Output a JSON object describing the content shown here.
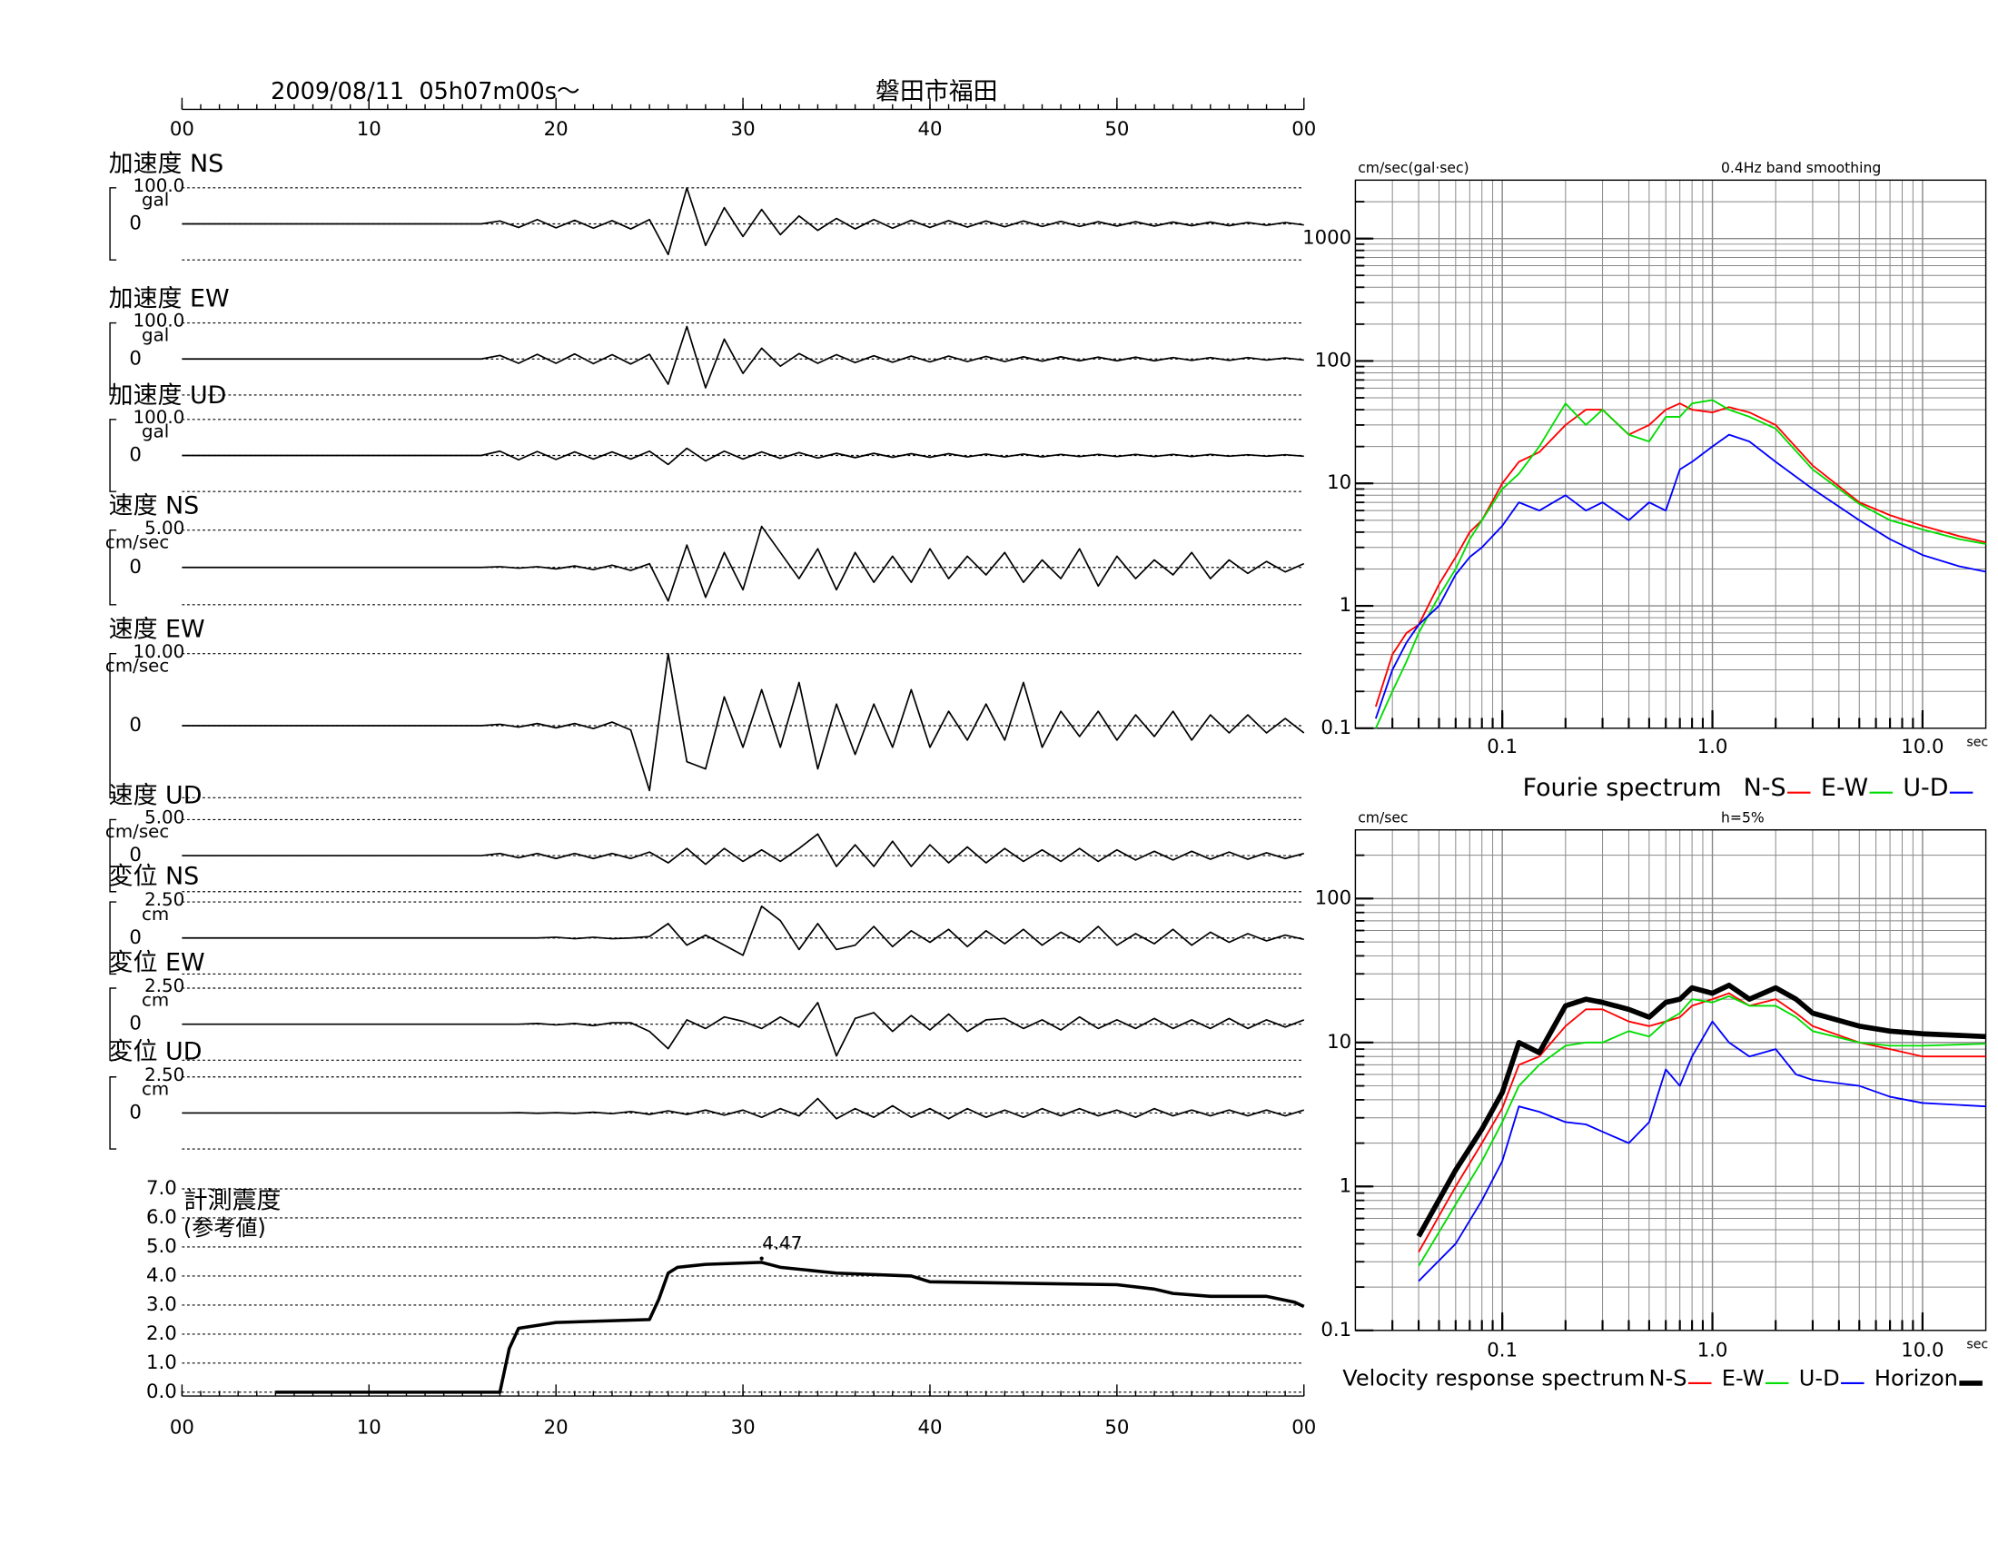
{
  "chart_data": [
    {
      "type": "waveform",
      "title": "2009/08/11  05h07m00s〜",
      "subtitle": "磐田市福田",
      "xlim": [
        0,
        60
      ],
      "xticks": [
        {
          "value": 0,
          "label": "00"
        },
        10,
        20,
        30,
        40,
        50,
        {
          "value": 60,
          "label": "00"
        }
      ],
      "color": "#000000",
      "x": [
        0,
        16,
        17,
        18,
        19,
        20,
        21,
        22,
        23,
        24,
        25,
        26,
        27,
        28,
        29,
        30,
        31,
        32,
        33,
        34,
        35,
        36,
        37,
        38,
        39,
        40,
        41,
        42,
        43,
        44,
        45,
        46,
        47,
        48,
        49,
        50,
        51,
        52,
        53,
        54,
        55,
        56,
        57,
        58,
        59,
        60
      ],
      "series": [
        {
          "name": "加速度 NS",
          "unit": "gal",
          "ylim": [
            -100,
            100
          ],
          "yticks": [
            {
              "value": 100,
              "label": "100.0"
            },
            0
          ],
          "values": [
            0,
            0,
            8,
            -10,
            12,
            -11,
            10,
            -12,
            9,
            -14,
            12,
            -85,
            100,
            -60,
            45,
            -35,
            40,
            -30,
            22,
            -18,
            15,
            -14,
            12,
            -12,
            10,
            -10,
            9,
            -9,
            8,
            -8,
            8,
            -7,
            7,
            -7,
            6,
            -6,
            6,
            -6,
            5,
            -5,
            5,
            -5,
            4,
            -4,
            4,
            -3
          ]
        },
        {
          "name": "加速度 EW",
          "unit": "gal",
          "ylim": [
            -100,
            100
          ],
          "yticks": [
            {
              "value": 100,
              "label": "100.0"
            },
            0
          ],
          "values": [
            0,
            0,
            10,
            -12,
            13,
            -12,
            14,
            -13,
            12,
            -14,
            13,
            -70,
            90,
            -80,
            55,
            -40,
            30,
            -20,
            15,
            -12,
            12,
            -10,
            9,
            -9,
            8,
            -8,
            8,
            -7,
            7,
            -7,
            6,
            -6,
            6,
            -5,
            5,
            -5,
            5,
            -5,
            4,
            -4,
            4,
            -4,
            4,
            -3,
            3,
            -3
          ]
        },
        {
          "name": "加速度 UD",
          "unit": "gal",
          "ylim": [
            -100,
            100
          ],
          "yticks": [
            {
              "value": 100,
              "label": "100.0"
            },
            0
          ],
          "values": [
            0,
            0,
            12,
            -12,
            11,
            -11,
            10,
            -10,
            10,
            -10,
            12,
            -25,
            20,
            -15,
            12,
            -10,
            10,
            -8,
            8,
            -7,
            6,
            -6,
            6,
            -5,
            5,
            -5,
            5,
            -4,
            4,
            -4,
            4,
            -4,
            3,
            -3,
            3,
            -3,
            3,
            -3,
            3,
            -3,
            3,
            -2,
            2,
            -2,
            2,
            -2
          ]
        },
        {
          "name": "速度 NS",
          "unit": "cm/sec",
          "ylim": [
            -5,
            5
          ],
          "yticks": [
            {
              "value": 5,
              "label": "5.00"
            },
            0
          ],
          "values": [
            0,
            0,
            0.1,
            -0.1,
            0.1,
            -0.2,
            0.2,
            -0.3,
            0.3,
            -0.4,
            0.5,
            -4.5,
            3,
            -4,
            2,
            -3,
            5.5,
            2,
            -1.5,
            2.5,
            -3,
            2,
            -2,
            1.5,
            -2,
            2.5,
            -1.5,
            1.5,
            -1,
            2,
            -2,
            1,
            -1.5,
            2.5,
            -2.5,
            1.5,
            -1.5,
            1,
            -1,
            2,
            -1.5,
            1,
            -0.8,
            0.8,
            -0.6,
            0.5
          ]
        },
        {
          "name": "速度 EW",
          "unit": "cm/sec",
          "ylim": [
            -10,
            10
          ],
          "yticks": [
            {
              "value": 10,
              "label": "10.00"
            },
            0
          ],
          "values": [
            0,
            0,
            0.2,
            -0.2,
            0.3,
            -0.3,
            0.3,
            -0.4,
            0.5,
            -0.6,
            -9,
            10,
            -5,
            -6,
            4,
            -3,
            5,
            -3,
            6,
            -6,
            3,
            -4,
            3,
            -3,
            5,
            -3,
            2,
            -2,
            3,
            -2,
            6,
            -3,
            2,
            -1.5,
            2,
            -2,
            1.5,
            -1.5,
            2,
            -2,
            1.5,
            -1,
            1.5,
            -1,
            1,
            -1
          ]
        },
        {
          "name": "速度 UD",
          "unit": "cm/sec",
          "ylim": [
            -5,
            5
          ],
          "yticks": [
            {
              "value": 5,
              "label": "5.00"
            },
            0
          ],
          "values": [
            0,
            0,
            0.3,
            -0.3,
            0.3,
            -0.4,
            0.3,
            -0.4,
            0.3,
            -0.4,
            0.5,
            -1,
            1,
            -1.2,
            1,
            -0.8,
            0.8,
            -0.8,
            1,
            3,
            -1.5,
            1.5,
            -1.5,
            2,
            -1.5,
            1.5,
            -1,
            1.2,
            -1,
            1,
            -0.8,
            0.8,
            -0.8,
            1,
            -0.8,
            0.8,
            -0.6,
            0.6,
            -0.6,
            0.6,
            -0.5,
            0.5,
            -0.5,
            0.4,
            -0.4,
            0.3
          ]
        },
        {
          "name": "変位 NS",
          "unit": "cm",
          "ylim": [
            -2.5,
            2.5
          ],
          "yticks": [
            {
              "value": 2.5,
              "label": "2.50"
            },
            0
          ],
          "values": [
            0,
            0,
            0,
            0,
            0,
            0.05,
            -0.05,
            0.05,
            -0.05,
            0,
            0.1,
            1,
            -0.5,
            0.2,
            -0.5,
            -1.2,
            2.2,
            1.2,
            -0.8,
            1,
            -0.8,
            -0.5,
            0.8,
            -0.6,
            0.5,
            -0.3,
            0.6,
            -0.6,
            0.5,
            -0.4,
            0.6,
            -0.5,
            0.4,
            -0.3,
            0.8,
            -0.5,
            0.3,
            -0.4,
            0.6,
            -0.5,
            0.4,
            -0.3,
            0.3,
            -0.2,
            0.2,
            -0.1
          ]
        },
        {
          "name": "変位 EW",
          "unit": "cm",
          "ylim": [
            -2.5,
            2.5
          ],
          "yticks": [
            {
              "value": 2.5,
              "label": "2.50"
            },
            0
          ],
          "values": [
            0,
            0,
            0,
            0,
            0.05,
            -0.05,
            0.05,
            -0.1,
            0.1,
            0.1,
            -0.5,
            -1.7,
            0.3,
            -0.3,
            0.5,
            0.2,
            -0.3,
            0.5,
            -0.2,
            1.5,
            -2.2,
            0.4,
            0.8,
            -0.5,
            0.6,
            -0.4,
            0.7,
            -0.5,
            0.3,
            0.4,
            -0.3,
            0.3,
            -0.4,
            0.5,
            -0.3,
            0.3,
            -0.3,
            0.4,
            -0.3,
            0.3,
            -0.3,
            0.4,
            -0.3,
            0.3,
            -0.2,
            0.3
          ]
        },
        {
          "name": "変位 UD",
          "unit": "cm",
          "ylim": [
            -2.5,
            2.5
          ],
          "yticks": [
            {
              "value": 2.5,
              "label": "2.50"
            },
            0
          ],
          "values": [
            0,
            0,
            0,
            0.02,
            -0.02,
            0.02,
            -0.03,
            0.05,
            -0.05,
            0.1,
            -0.1,
            0.15,
            -0.1,
            0.2,
            -0.15,
            0.2,
            -0.3,
            0.3,
            -0.2,
            1,
            -0.4,
            0.3,
            -0.3,
            0.5,
            -0.3,
            0.3,
            -0.4,
            0.3,
            -0.3,
            0.2,
            -0.3,
            0.3,
            -0.2,
            0.3,
            -0.2,
            0.2,
            -0.3,
            0.3,
            -0.2,
            0.2,
            -0.2,
            0.2,
            -0.2,
            0.2,
            -0.2,
            0.2
          ]
        }
      ]
    },
    {
      "type": "intensity",
      "ylabel": "計測震度",
      "ylabel_note": "(参考値)",
      "color": "#000000",
      "xlim": [
        0,
        60
      ],
      "xticks": [
        {
          "value": 0,
          "label": "00"
        },
        10,
        20,
        30,
        40,
        50,
        {
          "value": 60,
          "label": "00"
        }
      ],
      "ylim": [
        0,
        7
      ],
      "yticks": [
        {
          "value": 0,
          "label": "0.0"
        },
        {
          "value": 1,
          "label": "1.0"
        },
        {
          "value": 2,
          "label": "2.0"
        },
        {
          "value": 3,
          "label": "3.0"
        },
        {
          "value": 4,
          "label": "4.0"
        },
        {
          "value": 5,
          "label": "5.0"
        },
        {
          "value": 6,
          "label": "6.0"
        },
        {
          "value": 7,
          "label": "7.0"
        }
      ],
      "grid": true,
      "x": [
        5,
        17,
        17.5,
        18,
        20,
        25,
        25.5,
        26,
        26.5,
        28,
        31,
        32,
        35,
        39,
        40,
        45,
        50,
        52,
        53,
        55,
        58,
        59.5,
        60
      ],
      "values": [
        0,
        0,
        1.5,
        2.2,
        2.4,
        2.5,
        3.2,
        4.1,
        4.3,
        4.4,
        4.47,
        4.3,
        4.1,
        4.0,
        3.8,
        3.75,
        3.7,
        3.55,
        3.4,
        3.3,
        3.3,
        3.1,
        2.95
      ],
      "annotations": [
        {
          "x": 31,
          "y": 4.47,
          "text": "4.47"
        }
      ]
    },
    {
      "type": "spectrum",
      "title": "Fourie spectrum",
      "ylabel": "cm/sec(gal·sec)",
      "note": "0.4Hz band smoothing",
      "xlabel": "sec",
      "xscale": "log",
      "yscale": "log",
      "grid": true,
      "xlim": [
        0.02,
        20
      ],
      "ylim": [
        0.1,
        3000
      ],
      "xticks": [
        0.1,
        {
          "value": 1,
          "label": "1.0"
        },
        {
          "value": 10,
          "label": "10.0"
        }
      ],
      "yticks": [
        0.1,
        1,
        10,
        100,
        1000
      ],
      "x": [
        0.025,
        0.03,
        0.035,
        0.04,
        0.05,
        0.06,
        0.07,
        0.08,
        0.1,
        0.12,
        0.15,
        0.2,
        0.25,
        0.3,
        0.4,
        0.5,
        0.6,
        0.7,
        0.8,
        1,
        1.2,
        1.5,
        2,
        3,
        5,
        7,
        10,
        15,
        20
      ],
      "series": [
        {
          "name": "N-S",
          "color": "#ff0000",
          "values": [
            0.15,
            0.4,
            0.6,
            0.7,
            1.5,
            2.5,
            4,
            5,
            10,
            15,
            18,
            30,
            40,
            40,
            25,
            30,
            40,
            45,
            40,
            38,
            42,
            38,
            30,
            14,
            7,
            5.5,
            4.5,
            3.7,
            3.3
          ]
        },
        {
          "name": "E-W",
          "color": "#00dd00",
          "values": [
            0.1,
            0.2,
            0.35,
            0.6,
            1.2,
            2,
            3.5,
            5,
            9,
            12,
            20,
            45,
            30,
            40,
            25,
            22,
            35,
            35,
            45,
            48,
            40,
            35,
            28,
            13,
            6.8,
            5,
            4.2,
            3.5,
            3.2
          ]
        },
        {
          "name": "U-D",
          "color": "#0000ff",
          "values": [
            0.12,
            0.3,
            0.5,
            0.7,
            1,
            1.8,
            2.5,
            3,
            4.5,
            7,
            6,
            8,
            6,
            7,
            5,
            7,
            6,
            13,
            15,
            20,
            25,
            22,
            15,
            9,
            5,
            3.5,
            2.6,
            2.1,
            1.9
          ]
        }
      ]
    },
    {
      "type": "spectrum",
      "title": "Velocity response spectrum",
      "ylabel": "cm/sec",
      "note": "h=5%",
      "xlabel": "sec",
      "xscale": "log",
      "yscale": "log",
      "grid": true,
      "xlim": [
        0.02,
        20
      ],
      "ylim": [
        0.1,
        300
      ],
      "xticks": [
        0.1,
        {
          "value": 1,
          "label": "1.0"
        },
        {
          "value": 10,
          "label": "10.0"
        }
      ],
      "yticks": [
        0.1,
        1,
        10,
        100
      ],
      "x": [
        0.04,
        0.06,
        0.08,
        0.1,
        0.12,
        0.15,
        0.2,
        0.25,
        0.3,
        0.4,
        0.5,
        0.6,
        0.7,
        0.8,
        1,
        1.2,
        1.5,
        2,
        2.5,
        3,
        5,
        7,
        10,
        20
      ],
      "series": [
        {
          "name": "N-S",
          "color": "#ff0000",
          "values": [
            0.35,
            1,
            2,
            3.5,
            7,
            8,
            13,
            17,
            17,
            14,
            13,
            14,
            15,
            18,
            20,
            22,
            18,
            20,
            16,
            13,
            10,
            9,
            8,
            8
          ]
        },
        {
          "name": "E-W",
          "color": "#00dd00",
          "values": [
            0.28,
            0.75,
            1.5,
            2.8,
            5,
            7,
            9.5,
            10,
            10,
            12,
            11,
            14,
            16,
            20,
            19,
            21,
            18,
            18,
            15,
            12,
            10,
            9.5,
            9.5,
            9.8
          ]
        },
        {
          "name": "U-D",
          "color": "#0000ff",
          "values": [
            0.22,
            0.4,
            0.8,
            1.5,
            3.6,
            3.3,
            2.8,
            2.7,
            2.4,
            2,
            2.8,
            6.5,
            5,
            8,
            14,
            10,
            8,
            9,
            6,
            5.5,
            5,
            4.2,
            3.8,
            3.6
          ]
        },
        {
          "name": "Horizon",
          "color": "#000000",
          "values": [
            0.45,
            1.3,
            2.5,
            4.5,
            10,
            8.5,
            18,
            20,
            19,
            17,
            15,
            19,
            20,
            24,
            22,
            25,
            20,
            24,
            20,
            16,
            13,
            12,
            11.5,
            11
          ]
        }
      ]
    }
  ]
}
